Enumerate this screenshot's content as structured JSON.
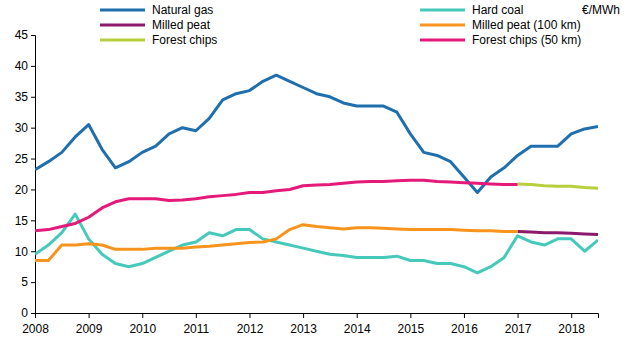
{
  "chart_data": {
    "type": "line",
    "y_label": "€/MWh",
    "x": [
      2008,
      2008.25,
      2008.5,
      2008.75,
      2009,
      2009.25,
      2009.5,
      2009.75,
      2010,
      2010.25,
      2010.5,
      2010.75,
      2011,
      2011.25,
      2011.5,
      2011.75,
      2012,
      2012.25,
      2012.5,
      2012.75,
      2013,
      2013.25,
      2013.5,
      2013.75,
      2014,
      2014.25,
      2014.5,
      2014.75,
      2015,
      2015.25,
      2015.5,
      2015.75,
      2016,
      2016.25,
      2016.5,
      2016.75,
      2017,
      2017.25,
      2017.5,
      2017.75,
      2018,
      2018.25,
      2018.5
    ],
    "series": [
      {
        "name": "Natural gas",
        "color": "#1f6fae",
        "values": [
          23.2,
          24.5,
          26.0,
          28.5,
          30.5,
          26.5,
          23.5,
          24.5,
          26.0,
          27.0,
          29.0,
          30.0,
          29.5,
          31.5,
          34.5,
          35.5,
          36.0,
          37.5,
          38.5,
          37.5,
          36.5,
          35.5,
          35.0,
          34.0,
          33.5,
          33.5,
          33.5,
          32.5,
          29.0,
          26.0,
          25.5,
          24.5,
          22.0,
          19.5,
          22.0,
          23.5,
          25.5,
          27.0,
          27.0,
          27.0,
          29.0,
          29.8,
          30.2
        ]
      },
      {
        "name": "Hard coal",
        "color": "#45c9bb",
        "values": [
          9.5,
          11.0,
          13.0,
          16.0,
          12.0,
          9.5,
          8.0,
          7.5,
          8.0,
          9.0,
          10.0,
          11.0,
          11.5,
          13.0,
          12.5,
          13.5,
          13.5,
          12.0,
          11.5,
          11.0,
          10.5,
          10.0,
          9.5,
          9.3,
          9.0,
          9.0,
          9.0,
          9.2,
          8.5,
          8.5,
          8.0,
          8.0,
          7.5,
          6.5,
          7.5,
          9.0,
          12.5,
          11.5,
          11.0,
          12.0,
          12.0,
          10.0,
          11.8
        ]
      },
      {
        "name": "Milled peat",
        "color": "#8b1a6e",
        "values": [
          null,
          null,
          null,
          null,
          null,
          null,
          null,
          null,
          null,
          null,
          null,
          null,
          null,
          null,
          null,
          null,
          null,
          null,
          null,
          null,
          null,
          null,
          null,
          null,
          null,
          null,
          null,
          null,
          null,
          null,
          null,
          null,
          null,
          null,
          null,
          null,
          13.2,
          13.1,
          13.0,
          13.0,
          12.9,
          12.8,
          12.7
        ]
      },
      {
        "name": "Milled peat (100 km)",
        "color": "#f7941d",
        "values": [
          8.5,
          8.5,
          11.0,
          11.0,
          11.2,
          11.0,
          10.3,
          10.3,
          10.3,
          10.5,
          10.5,
          10.5,
          10.7,
          10.8,
          11.0,
          11.2,
          11.4,
          11.5,
          12.0,
          13.5,
          14.3,
          14.0,
          13.8,
          13.6,
          13.8,
          13.8,
          13.7,
          13.6,
          13.5,
          13.5,
          13.5,
          13.5,
          13.4,
          13.3,
          13.3,
          13.2,
          13.2,
          null,
          null,
          null,
          null,
          null,
          null
        ]
      },
      {
        "name": "Forest chips",
        "color": "#b8cf3c",
        "values": [
          null,
          null,
          null,
          null,
          null,
          null,
          null,
          null,
          null,
          null,
          null,
          null,
          null,
          null,
          null,
          null,
          null,
          null,
          null,
          null,
          null,
          null,
          null,
          null,
          null,
          null,
          null,
          null,
          null,
          null,
          null,
          null,
          null,
          null,
          null,
          null,
          20.9,
          20.8,
          20.6,
          20.5,
          20.5,
          20.3,
          20.2
        ]
      },
      {
        "name": "Forest chips (50 km)",
        "color": "#e4197a",
        "values": [
          13.3,
          13.5,
          14.0,
          14.5,
          15.5,
          17.0,
          18.0,
          18.5,
          18.5,
          18.5,
          18.2,
          18.3,
          18.5,
          18.8,
          19.0,
          19.2,
          19.5,
          19.5,
          19.8,
          20.0,
          20.6,
          20.7,
          20.8,
          21.0,
          21.2,
          21.3,
          21.3,
          21.4,
          21.5,
          21.5,
          21.3,
          21.2,
          21.1,
          21.0,
          20.9,
          20.8,
          20.8,
          null,
          null,
          null,
          null,
          null,
          null
        ]
      }
    ],
    "xlim": [
      2008,
      2018.5
    ],
    "xticks": [
      2008,
      2009,
      2010,
      2011,
      2012,
      2013,
      2014,
      2015,
      2016,
      2017,
      2018
    ],
    "ylim": [
      0,
      45
    ],
    "yticks": [
      0,
      5,
      10,
      15,
      20,
      25,
      30,
      35,
      40,
      45
    ],
    "grid": false,
    "legend": "top"
  }
}
